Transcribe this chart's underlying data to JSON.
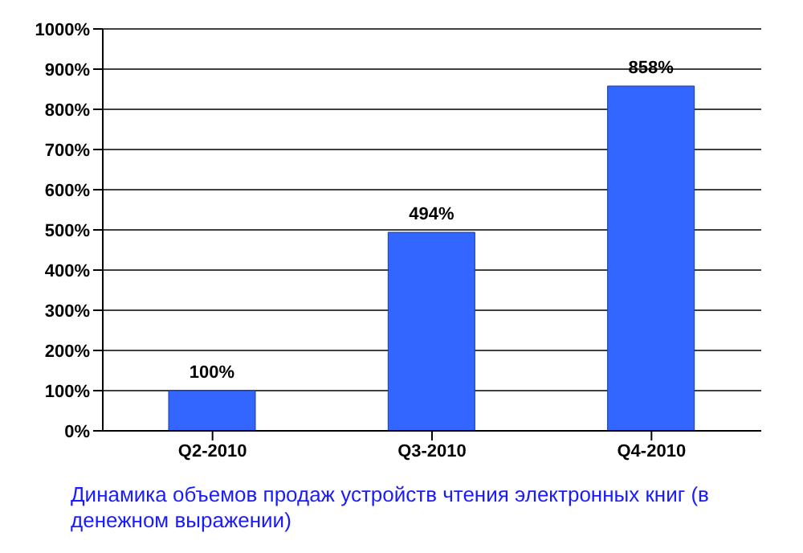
{
  "chart_data": {
    "type": "bar",
    "categories": [
      "Q2-2010",
      "Q3-2010",
      "Q4-2010"
    ],
    "values": [
      100,
      494,
      858
    ],
    "value_labels": [
      "100%",
      "494%",
      "858%"
    ],
    "color": "#3366ff",
    "ylim": [
      0,
      1000
    ],
    "yticks": [
      {
        "value": 0,
        "label": "0%"
      },
      {
        "value": 100,
        "label": "100%"
      },
      {
        "value": 200,
        "label": "200%"
      },
      {
        "value": 300,
        "label": "300%"
      },
      {
        "value": 400,
        "label": "400%"
      },
      {
        "value": 500,
        "label": "500%"
      },
      {
        "value": 600,
        "label": "600%"
      },
      {
        "value": 700,
        "label": "700%"
      },
      {
        "value": 800,
        "label": "800%"
      },
      {
        "value": 900,
        "label": "900%"
      },
      {
        "value": 1000,
        "label": "1000%"
      }
    ],
    "grid": "y",
    "annotations": [
      "Динамика объемов продаж устройств чтения электронных книг (в денежном выражении)"
    ]
  }
}
